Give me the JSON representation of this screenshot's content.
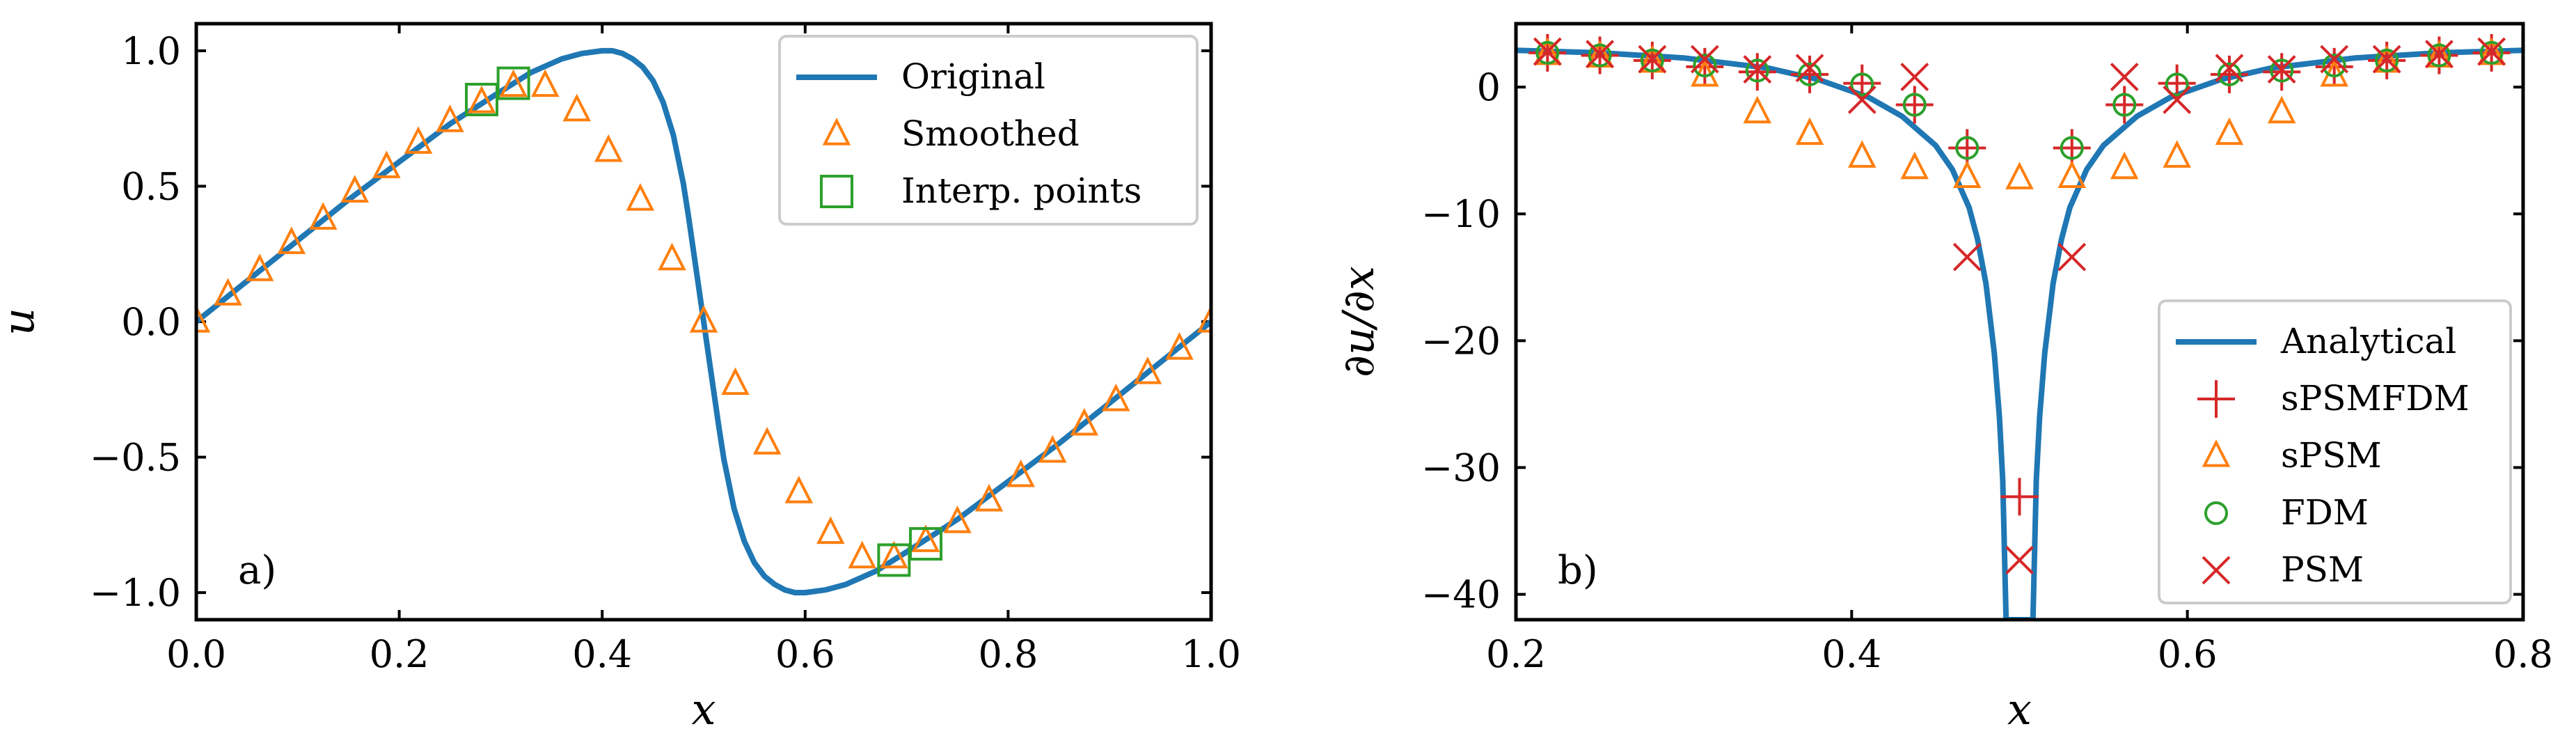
{
  "chart_data": [
    {
      "type": "line",
      "panel_label": "a)",
      "xlabel": "x",
      "ylabel": "u",
      "xlim": [
        0.0,
        1.0
      ],
      "ylim": [
        -1.1,
        1.1
      ],
      "xticks": [
        0.0,
        0.2,
        0.4,
        0.6,
        0.8,
        1.0
      ],
      "yticks": [
        -1.0,
        -0.5,
        0.0,
        0.5,
        1.0
      ],
      "xtick_labels": [
        "0.0",
        "0.2",
        "0.4",
        "0.6",
        "0.8",
        "1.0"
      ],
      "ytick_labels": [
        "−1.0",
        "−0.5",
        "0.0",
        "0.5",
        "1.0"
      ],
      "legend_position": "top-right",
      "series": [
        {
          "name": "Original",
          "marker": "line",
          "color": "#1f77b4",
          "x": [
            0.0,
            0.05,
            0.1,
            0.15,
            0.2,
            0.25,
            0.3,
            0.33,
            0.36,
            0.38,
            0.4,
            0.41,
            0.42,
            0.43,
            0.44,
            0.45,
            0.46,
            0.47,
            0.48,
            0.485,
            0.49,
            0.495,
            0.5,
            0.505,
            0.51,
            0.515,
            0.52,
            0.53,
            0.54,
            0.55,
            0.56,
            0.57,
            0.58,
            0.59,
            0.6,
            0.62,
            0.64,
            0.67,
            0.7,
            0.75,
            0.8,
            0.85,
            0.9,
            0.95,
            1.0
          ],
          "y": [
            0.0,
            0.15,
            0.3,
            0.45,
            0.59,
            0.73,
            0.85,
            0.92,
            0.97,
            0.99,
            1.0,
            1.0,
            0.99,
            0.97,
            0.94,
            0.89,
            0.81,
            0.69,
            0.51,
            0.39,
            0.26,
            0.13,
            0.0,
            -0.13,
            -0.26,
            -0.39,
            -0.51,
            -0.69,
            -0.81,
            -0.89,
            -0.94,
            -0.97,
            -0.99,
            -1.0,
            -1.0,
            -0.99,
            -0.97,
            -0.92,
            -0.85,
            -0.73,
            -0.59,
            -0.45,
            -0.3,
            -0.15,
            0.0
          ]
        },
        {
          "name": "Smoothed",
          "marker": "triangle",
          "color": "#ff7f0e",
          "x": [
            0.0,
            0.0312,
            0.0625,
            0.0938,
            0.125,
            0.1562,
            0.1875,
            0.2188,
            0.25,
            0.2812,
            0.3125,
            0.3438,
            0.375,
            0.4062,
            0.4375,
            0.4688,
            0.5,
            0.5312,
            0.5625,
            0.5938,
            0.625,
            0.6562,
            0.6875,
            0.7188,
            0.75,
            0.7812,
            0.8125,
            0.8438,
            0.875,
            0.9062,
            0.9375,
            0.9688,
            1.0
          ],
          "y": [
            0.0,
            0.1,
            0.19,
            0.29,
            0.38,
            0.48,
            0.57,
            0.66,
            0.74,
            0.81,
            0.87,
            0.87,
            0.78,
            0.63,
            0.45,
            0.23,
            0.0,
            -0.23,
            -0.45,
            -0.63,
            -0.78,
            -0.87,
            -0.87,
            -0.81,
            -0.74,
            -0.66,
            -0.57,
            -0.48,
            -0.38,
            -0.29,
            -0.19,
            -0.1,
            0.0
          ]
        },
        {
          "name": "Interp. points",
          "marker": "square",
          "color": "#2ca02c",
          "x": [
            0.2812,
            0.3125,
            0.6875,
            0.7188
          ],
          "y": [
            0.82,
            0.88,
            -0.88,
            -0.82
          ]
        }
      ]
    },
    {
      "type": "line",
      "panel_label": "b)",
      "xlabel": "x",
      "ylabel": "∂u/∂x",
      "xlim": [
        0.2,
        0.8
      ],
      "ylim": [
        -42,
        5
      ],
      "xticks": [
        0.2,
        0.4,
        0.6,
        0.8
      ],
      "yticks": [
        -40,
        -30,
        -20,
        -10,
        0
      ],
      "xtick_labels": [
        "0.2",
        "0.4",
        "0.6",
        "0.8"
      ],
      "ytick_labels": [
        "−40",
        "−30",
        "−20",
        "−10",
        "0"
      ],
      "legend_position": "bottom-right",
      "series": [
        {
          "name": "Analytical",
          "marker": "line",
          "color": "#1f77b4",
          "x": [
            0.2,
            0.25,
            0.3,
            0.35,
            0.38,
            0.41,
            0.43,
            0.45,
            0.46,
            0.47,
            0.475,
            0.48,
            0.485,
            0.488,
            0.49,
            0.492,
            0.508,
            0.51,
            0.512,
            0.515,
            0.52,
            0.525,
            0.53,
            0.54,
            0.55,
            0.57,
            0.59,
            0.62,
            0.65,
            0.7,
            0.75,
            0.8
          ],
          "y": [
            2.9,
            2.7,
            2.3,
            1.5,
            0.6,
            -0.8,
            -2.3,
            -4.6,
            -6.5,
            -9.5,
            -12.0,
            -15.5,
            -21.0,
            -26.0,
            -31.0,
            -42.0,
            -42.0,
            -31.0,
            -26.0,
            -21.0,
            -15.5,
            -12.0,
            -9.5,
            -6.5,
            -4.6,
            -2.3,
            -0.8,
            0.6,
            1.5,
            2.3,
            2.7,
            2.9
          ]
        },
        {
          "name": "sPSMFDM",
          "marker": "plus",
          "color": "#d62728",
          "x": [
            0.2188,
            0.25,
            0.2812,
            0.3125,
            0.3438,
            0.375,
            0.4062,
            0.4375,
            0.4688,
            0.5,
            0.5312,
            0.5625,
            0.5938,
            0.625,
            0.6562,
            0.6875,
            0.7188,
            0.75,
            0.7812
          ],
          "y": [
            2.7,
            2.5,
            2.1,
            1.6,
            1.2,
            1.0,
            0.3,
            -1.4,
            -4.8,
            -32.3,
            -4.8,
            -1.4,
            0.3,
            1.0,
            1.2,
            1.6,
            2.1,
            2.5,
            2.7
          ]
        },
        {
          "name": "sPSM",
          "marker": "triangle",
          "color": "#ff7f0e",
          "x": [
            0.2188,
            0.25,
            0.2812,
            0.3125,
            0.3438,
            0.375,
            0.4062,
            0.4375,
            0.4688,
            0.5,
            0.5312,
            0.5625,
            0.5938,
            0.625,
            0.6562,
            0.6875,
            0.7188,
            0.75,
            0.7812
          ],
          "y": [
            2.6,
            2.4,
            2.0,
            0.9,
            -2.0,
            -3.7,
            -5.5,
            -6.4,
            -7.1,
            -7.2,
            -7.1,
            -6.4,
            -5.5,
            -3.7,
            -2.0,
            0.9,
            2.0,
            2.4,
            2.6
          ]
        },
        {
          "name": "FDM",
          "marker": "circle",
          "color": "#2ca02c",
          "x": [
            0.2188,
            0.25,
            0.2812,
            0.3125,
            0.3438,
            0.375,
            0.4062,
            0.4375,
            0.4688,
            0.5312,
            0.5625,
            0.5938,
            0.625,
            0.6562,
            0.6875,
            0.7188,
            0.75,
            0.7812
          ],
          "y": [
            2.7,
            2.5,
            2.1,
            1.7,
            1.3,
            1.0,
            0.2,
            -1.4,
            -4.8,
            -4.8,
            -1.4,
            0.2,
            1.0,
            1.3,
            1.7,
            2.1,
            2.5,
            2.7
          ]
        },
        {
          "name": "PSM",
          "marker": "x",
          "color": "#d62728",
          "x": [
            0.2188,
            0.25,
            0.2812,
            0.3125,
            0.3438,
            0.375,
            0.4062,
            0.4375,
            0.4688,
            0.5,
            0.5312,
            0.5625,
            0.5938,
            0.625,
            0.6562,
            0.6875,
            0.7188,
            0.75,
            0.7812
          ],
          "y": [
            2.8,
            2.6,
            2.2,
            2.2,
            1.4,
            1.5,
            -1.0,
            0.8,
            -13.4,
            -37.3,
            -13.4,
            0.8,
            -1.0,
            1.5,
            1.4,
            2.2,
            2.2,
            2.6,
            2.8
          ]
        }
      ]
    }
  ]
}
